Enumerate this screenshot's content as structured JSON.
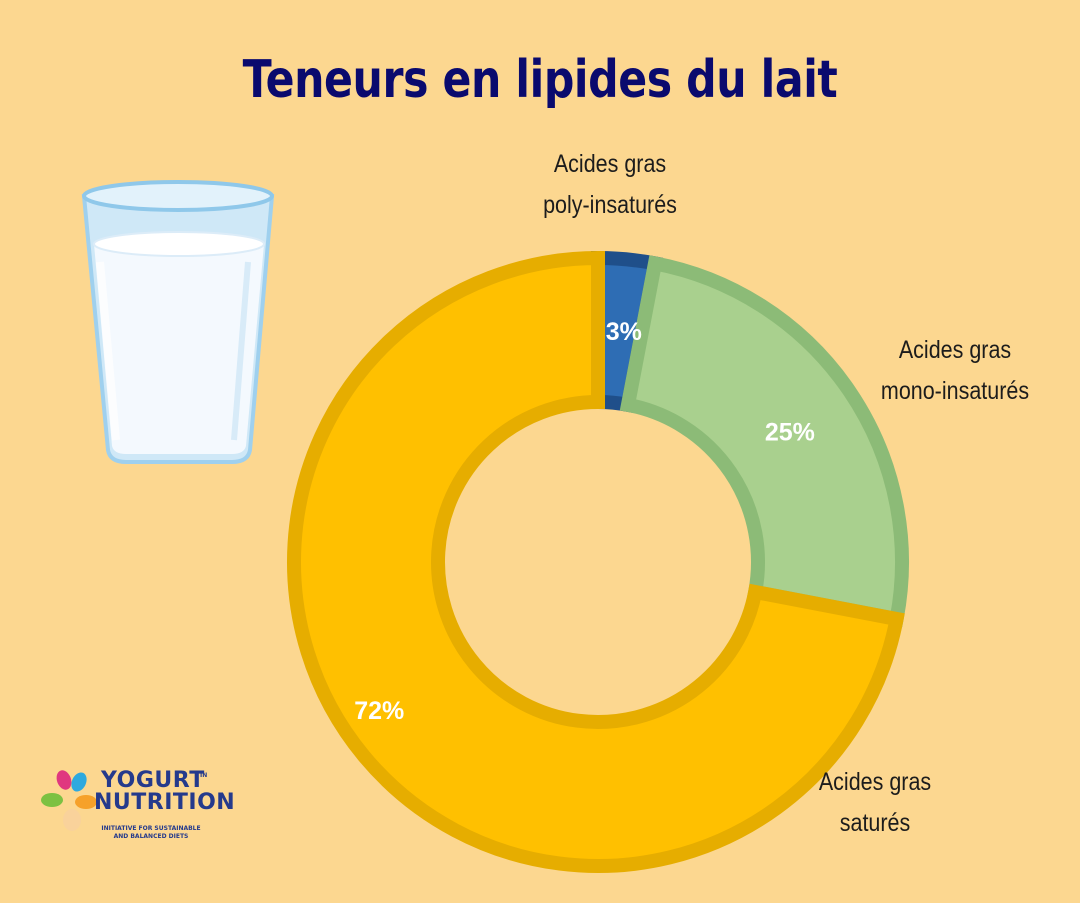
{
  "title": "Teneurs en lipides du lait",
  "chart_data": {
    "type": "pie",
    "variant": "donut",
    "title": "Teneurs en lipides du lait",
    "start_angle_deg": 0,
    "direction": "clockwise",
    "slices": [
      {
        "label_line1": "Acides gras",
        "label_line2": "poly-insaturés",
        "value": 3,
        "value_label": "3%",
        "color": "#2e6db4",
        "border": "#1f4f8a"
      },
      {
        "label_line1": "Acides gras",
        "label_line2": "mono-insaturés",
        "value": 25,
        "value_label": "25%",
        "color": "#a9d08e",
        "border": "#8cbb77"
      },
      {
        "label_line1": "Acides gras",
        "label_line2": "saturés",
        "value": 72,
        "value_label": "72%",
        "color": "#ffc000",
        "border": "#e6ad00"
      }
    ]
  },
  "logo": {
    "word1": "YOGURT",
    "word_small": "IN",
    "word2": "NUTRITION",
    "tagline_line1": "INITIATIVE FOR SUSTAINABLE",
    "tagline_line2": "AND BALANCED DIETS"
  }
}
